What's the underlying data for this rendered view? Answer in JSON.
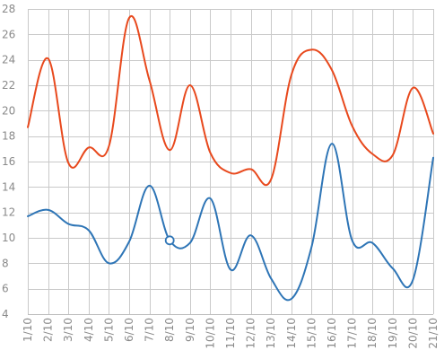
{
  "chart_data": {
    "type": "line",
    "x": [
      "1/10",
      "2/10",
      "3/10",
      "4/10",
      "5/10",
      "6/10",
      "7/10",
      "8/10",
      "9/10",
      "10/10",
      "11/10",
      "12/10",
      "13/10",
      "14/10",
      "15/10",
      "16/10",
      "17/10",
      "18/10",
      "19/10",
      "20/10",
      "21/10"
    ],
    "ylim": [
      4,
      28
    ],
    "yticks": [
      4,
      6,
      8,
      10,
      12,
      14,
      16,
      18,
      20,
      22,
      24,
      26,
      28
    ],
    "grid": true,
    "series": [
      {
        "color": "#e8491d",
        "values": [
          18.7,
          24.1,
          15.9,
          17.1,
          17.2,
          27.3,
          22.4,
          16.9,
          22.0,
          16.7,
          15.1,
          15.4,
          14.6,
          22.8,
          24.8,
          23.2,
          18.8,
          16.6,
          16.5,
          21.8,
          18.2
        ]
      },
      {
        "color": "#2e75b6",
        "values": [
          11.7,
          12.2,
          11.1,
          10.6,
          8.0,
          9.7,
          14.1,
          9.8,
          9.6,
          13.1,
          7.5,
          10.2,
          6.8,
          5.2,
          9.3,
          17.4,
          9.8,
          9.6,
          7.6,
          6.7,
          16.3
        ]
      }
    ],
    "highlight": {
      "series": 1,
      "index": 7
    }
  }
}
